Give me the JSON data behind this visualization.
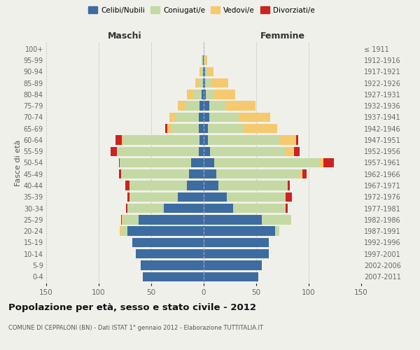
{
  "age_groups": [
    "100+",
    "95-99",
    "90-94",
    "85-89",
    "80-84",
    "75-79",
    "70-74",
    "65-69",
    "60-64",
    "55-59",
    "50-54",
    "45-49",
    "40-44",
    "35-39",
    "30-34",
    "25-29",
    "20-24",
    "15-19",
    "10-14",
    "5-9",
    "0-4"
  ],
  "birth_years": [
    "≤ 1911",
    "1912-1916",
    "1917-1921",
    "1922-1926",
    "1927-1931",
    "1932-1936",
    "1937-1941",
    "1942-1946",
    "1947-1951",
    "1952-1956",
    "1957-1961",
    "1962-1966",
    "1967-1971",
    "1972-1976",
    "1977-1981",
    "1982-1986",
    "1987-1991",
    "1992-1996",
    "1997-2001",
    "2002-2006",
    "2007-2011"
  ],
  "male": {
    "celibi": [
      0,
      1,
      1,
      1,
      2,
      4,
      5,
      5,
      4,
      5,
      12,
      14,
      16,
      25,
      38,
      62,
      73,
      68,
      65,
      60,
      58
    ],
    "coniugati": [
      0,
      1,
      2,
      4,
      8,
      14,
      22,
      26,
      72,
      78,
      68,
      65,
      55,
      45,
      35,
      15,
      6,
      0,
      0,
      0,
      0
    ],
    "vedovi": [
      0,
      0,
      1,
      3,
      6,
      7,
      6,
      4,
      2,
      0,
      0,
      0,
      0,
      1,
      0,
      1,
      1,
      0,
      0,
      0,
      0
    ],
    "divorziati": [
      0,
      0,
      0,
      0,
      0,
      0,
      0,
      2,
      6,
      6,
      1,
      2,
      4,
      2,
      1,
      1,
      0,
      0,
      0,
      0,
      0
    ]
  },
  "female": {
    "nubili": [
      0,
      0,
      1,
      1,
      2,
      5,
      5,
      4,
      4,
      6,
      10,
      12,
      14,
      22,
      28,
      55,
      68,
      62,
      62,
      55,
      52
    ],
    "coniugate": [
      0,
      1,
      2,
      6,
      8,
      16,
      28,
      34,
      68,
      72,
      100,
      80,
      65,
      55,
      50,
      28,
      4,
      0,
      0,
      0,
      0
    ],
    "vedove": [
      0,
      2,
      6,
      16,
      20,
      28,
      30,
      32,
      16,
      8,
      4,
      2,
      1,
      1,
      0,
      0,
      0,
      0,
      0,
      0,
      0
    ],
    "divorziate": [
      0,
      0,
      0,
      0,
      0,
      0,
      0,
      0,
      2,
      5,
      10,
      4,
      2,
      6,
      2,
      0,
      0,
      0,
      0,
      0,
      0
    ]
  },
  "colors": {
    "celibi": "#3d6ca0",
    "coniugati": "#c5d9a4",
    "vedovi": "#f5c96e",
    "divorziati": "#cc2222"
  },
  "xlim": 150,
  "title": "Popolazione per età, sesso e stato civile - 2012",
  "subtitle": "COMUNE DI CEPPALONI (BN) - Dati ISTAT 1° gennaio 2012 - Elaborazione TUTTITALIA.IT",
  "ylabel_left": "Fasce di età",
  "xlabel_left": "Maschi",
  "xlabel_right": "Femmine",
  "bg_color": "#f0f0eb",
  "grid_color": "#bbbbbb"
}
